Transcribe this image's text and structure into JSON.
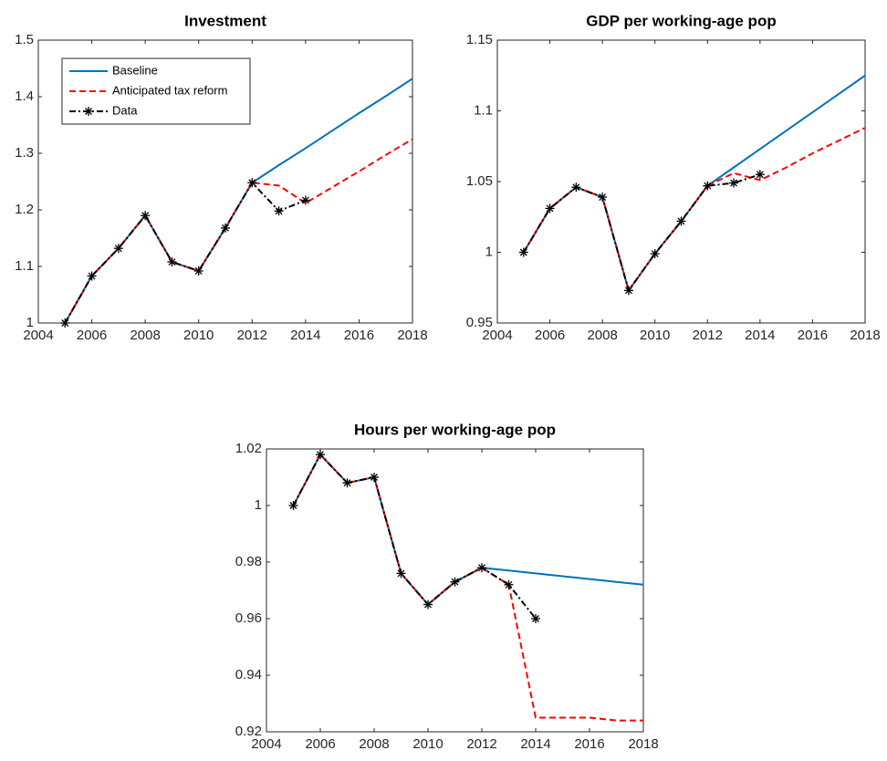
{
  "chart_data": [
    {
      "type": "line",
      "title": "Investment",
      "x": [
        2005,
        2006,
        2007,
        2008,
        2009,
        2010,
        2011,
        2012,
        2013,
        2014,
        2015,
        2016,
        2017,
        2018
      ],
      "series": [
        {
          "name": "Baseline",
          "color": "#0072bd",
          "line_style": "solid",
          "values": [
            1.0,
            1.083,
            1.132,
            1.19,
            1.108,
            1.092,
            1.168,
            1.248,
            1.279,
            1.309,
            1.34,
            1.371,
            1.401,
            1.432
          ]
        },
        {
          "name": "Anticipated tax reform",
          "color": "#ff0000",
          "line_style": "dashed",
          "values": [
            1.0,
            1.083,
            1.132,
            1.19,
            1.108,
            1.092,
            1.168,
            1.248,
            1.243,
            1.212,
            1.24,
            1.268,
            1.297,
            1.325
          ]
        },
        {
          "name": "Data",
          "color": "#000000",
          "line_style": "dashdot",
          "marker": "asterisk",
          "values": [
            1.0,
            1.083,
            1.132,
            1.19,
            1.108,
            1.092,
            1.168,
            1.248,
            1.198,
            1.217,
            null,
            null,
            null,
            null
          ]
        }
      ],
      "xlim": [
        2004,
        2018
      ],
      "xticks": [
        2004,
        2006,
        2008,
        2010,
        2012,
        2014,
        2016,
        2018
      ],
      "ylim": [
        1,
        1.5
      ],
      "yticks": [
        1,
        1.1,
        1.2,
        1.3,
        1.4,
        1.5
      ],
      "legend": "upper left"
    },
    {
      "type": "line",
      "title": "GDP per working-age pop",
      "x": [
        2005,
        2006,
        2007,
        2008,
        2009,
        2010,
        2011,
        2012,
        2013,
        2014,
        2015,
        2016,
        2017,
        2018
      ],
      "series": [
        {
          "color": "#0072bd",
          "line_style": "solid",
          "values": [
            1.0,
            1.031,
            1.046,
            1.039,
            0.973,
            0.999,
            1.022,
            1.047,
            1.06,
            1.073,
            1.086,
            1.099,
            1.112,
            1.125
          ]
        },
        {
          "color": "#ff0000",
          "line_style": "dashed",
          "values": [
            1.0,
            1.031,
            1.046,
            1.039,
            0.973,
            0.999,
            1.022,
            1.047,
            1.056,
            1.051,
            1.06,
            1.07,
            1.079,
            1.088
          ]
        },
        {
          "color": "#000000",
          "line_style": "dashdot",
          "marker": "asterisk",
          "values": [
            1.0,
            1.031,
            1.046,
            1.039,
            0.973,
            0.999,
            1.022,
            1.047,
            1.049,
            1.055,
            null,
            null,
            null,
            null
          ]
        }
      ],
      "xlim": [
        2004,
        2018
      ],
      "xticks": [
        2004,
        2006,
        2008,
        2010,
        2012,
        2014,
        2016,
        2018
      ],
      "ylim": [
        0.95,
        1.15
      ],
      "yticks": [
        0.95,
        1,
        1.05,
        1.1,
        1.15
      ]
    },
    {
      "type": "line",
      "title": "Hours per working-age pop",
      "x": [
        2005,
        2006,
        2007,
        2008,
        2009,
        2010,
        2011,
        2012,
        2013,
        2014,
        2015,
        2016,
        2017,
        2018
      ],
      "series": [
        {
          "color": "#0072bd",
          "line_style": "solid",
          "values": [
            1.0,
            1.018,
            1.008,
            1.01,
            0.976,
            0.965,
            0.973,
            0.978,
            0.977,
            0.976,
            0.975,
            0.974,
            0.973,
            0.972
          ]
        },
        {
          "color": "#ff0000",
          "line_style": "dashed",
          "values": [
            1.0,
            1.018,
            1.008,
            1.01,
            0.976,
            0.965,
            0.973,
            0.978,
            0.972,
            0.925,
            0.925,
            0.925,
            0.924,
            0.924
          ]
        },
        {
          "color": "#000000",
          "line_style": "dashdot",
          "marker": "asterisk",
          "values": [
            1.0,
            1.018,
            1.008,
            1.01,
            0.976,
            0.965,
            0.973,
            0.978,
            0.972,
            0.96,
            null,
            null,
            null,
            null
          ]
        }
      ],
      "xlim": [
        2004,
        2018
      ],
      "xticks": [
        2004,
        2006,
        2008,
        2010,
        2012,
        2014,
        2016,
        2018
      ],
      "ylim": [
        0.92,
        1.02
      ],
      "yticks": [
        0.92,
        0.94,
        0.96,
        0.98,
        1,
        1.02
      ]
    }
  ]
}
